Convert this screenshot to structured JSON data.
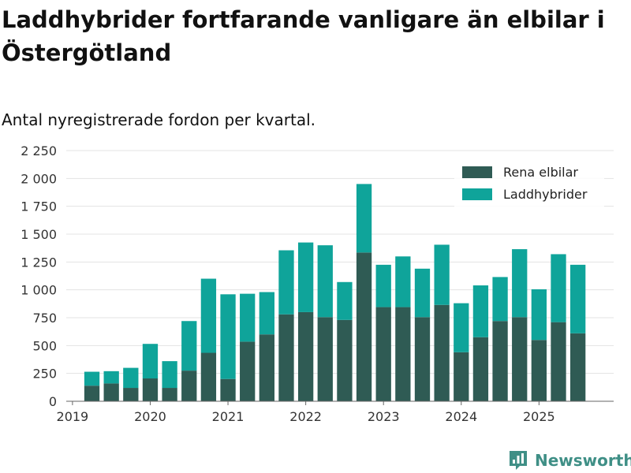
{
  "title": "Laddhybrider fortfarande vanligare än elbilar i Östergötland",
  "subtitle": "Antal nyregistrerade fordon per kvartal.",
  "brand": {
    "name": "Newsworthy",
    "icon": "newsworthy-logo-icon",
    "color": "#3f8f86"
  },
  "colors": {
    "elbilar": "#2f5b54",
    "laddhybrider": "#0fa49a",
    "grid": "#e3e3e3",
    "axis": "#666666"
  },
  "chart_data": {
    "type": "bar",
    "stacked": true,
    "title": "Laddhybrider fortfarande vanligare än elbilar i Östergötland",
    "subtitle": "Antal nyregistrerade fordon per kvartal.",
    "xlabel": "",
    "ylabel": "",
    "ylim": [
      0,
      2250
    ],
    "yticks": [
      0,
      250,
      500,
      750,
      1000,
      1250,
      1500,
      1750,
      2000,
      2250
    ],
    "ytick_labels": [
      "0",
      "250",
      "500",
      "750",
      "1 000",
      "1 250",
      "1 500",
      "1 750",
      "2 000",
      "2 250"
    ],
    "xticks": [
      2019,
      2020,
      2021,
      2022,
      2023,
      2024,
      2025
    ],
    "xtick_labels": [
      "2019",
      "2020",
      "2021",
      "2022",
      "2023",
      "2024",
      "2025"
    ],
    "xlim": [
      2018.92,
      2025.96
    ],
    "legend_position": "top-right",
    "categories": [
      "2019 Q2",
      "2019 Q3",
      "2019 Q4",
      "2020 Q1",
      "2020 Q2",
      "2020 Q3",
      "2020 Q4",
      "2021 Q1",
      "2021 Q2",
      "2021 Q3",
      "2021 Q4",
      "2022 Q1",
      "2022 Q2",
      "2022 Q3",
      "2022 Q4",
      "2023 Q1",
      "2023 Q2",
      "2023 Q3",
      "2023 Q4",
      "2024 Q1",
      "2024 Q2",
      "2024 Q3",
      "2024 Q4",
      "2025 Q1",
      "2025 Q2",
      "2025 Q3"
    ],
    "x": [
      2019.25,
      2019.5,
      2019.75,
      2020.0,
      2020.25,
      2020.5,
      2020.75,
      2021.0,
      2021.25,
      2021.5,
      2021.75,
      2022.0,
      2022.25,
      2022.5,
      2022.75,
      2023.0,
      2023.25,
      2023.5,
      2023.75,
      2024.0,
      2024.25,
      2024.5,
      2024.75,
      2025.0,
      2025.25,
      2025.5
    ],
    "series": [
      {
        "name": "Rena elbilar",
        "color": "#2f5b54",
        "values": [
          140,
          160,
          120,
          205,
          120,
          275,
          435,
          200,
          535,
          600,
          780,
          800,
          755,
          730,
          1335,
          845,
          845,
          755,
          865,
          440,
          575,
          720,
          755,
          550,
          710,
          610
        ]
      },
      {
        "name": "Laddhybrider",
        "color": "#0fa49a",
        "values": [
          125,
          110,
          180,
          310,
          240,
          445,
          665,
          760,
          430,
          380,
          575,
          625,
          645,
          340,
          615,
          380,
          455,
          435,
          540,
          440,
          465,
          395,
          610,
          455,
          610,
          615
        ]
      }
    ]
  }
}
